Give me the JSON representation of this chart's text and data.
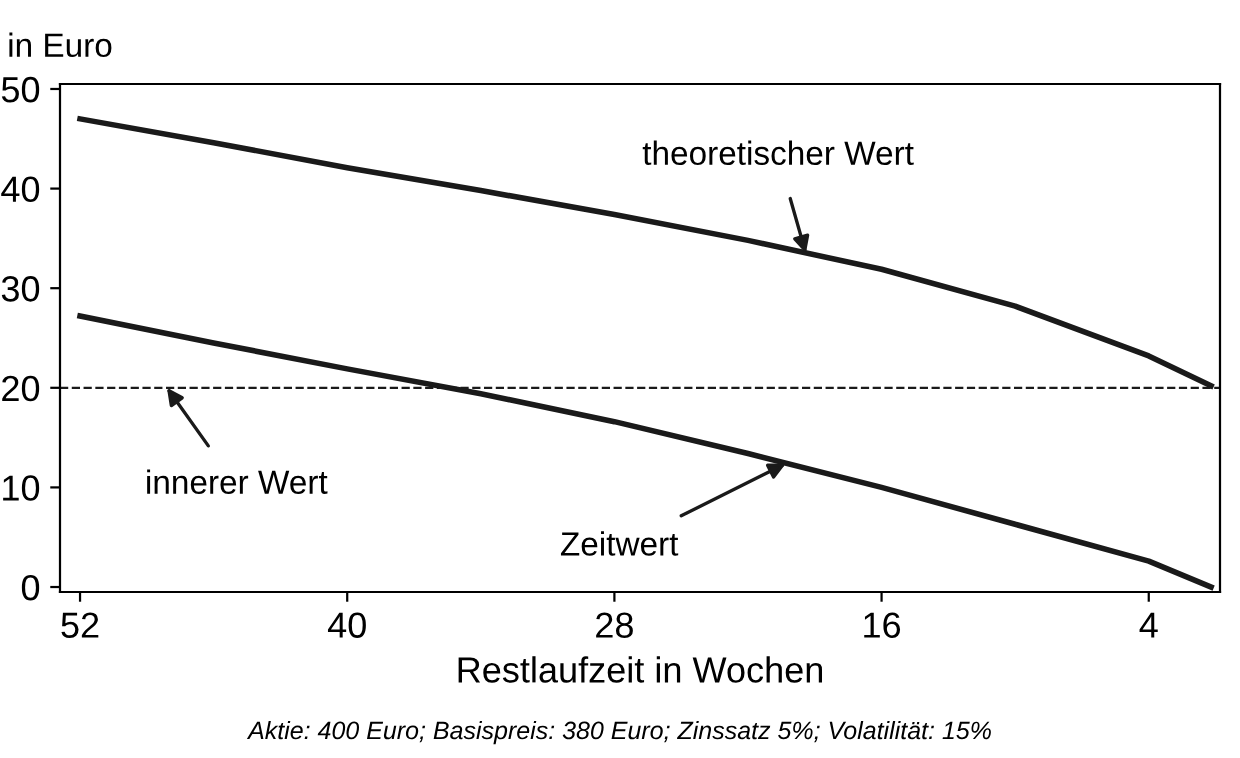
{
  "chart_data": {
    "type": "line",
    "ylabel": "in Euro",
    "xlabel": "Restlaufzeit in Wochen",
    "series": [
      {
        "color": "#1a1a1a",
        "x": [
          52,
          46,
          40,
          34,
          28,
          22,
          16,
          10,
          4,
          1.2
        ],
        "values": [
          47,
          44.6,
          42.1,
          39.8,
          37.4,
          34.8,
          31.9,
          28.2,
          23.2,
          20.2
        ]
      },
      {
        "color": "#1a1a1a",
        "x": [
          52,
          46,
          40,
          34,
          28,
          22,
          16,
          10,
          4,
          1.2
        ],
        "values": [
          27.2,
          24.5,
          21.9,
          19.4,
          16.6,
          13.4,
          10,
          6.3,
          2.6,
          0
        ]
      }
    ],
    "xlim": [
      52.9,
      0.8
    ],
    "ylim": [
      -0.5,
      50.5
    ],
    "xticks": [
      52,
      40,
      28,
      16,
      4
    ],
    "yticks": [
      0,
      10,
      20,
      30,
      40,
      50
    ],
    "ref_lines": [
      {
        "axis": "y",
        "value": 20,
        "line_style": "dashed",
        "color": "#1a1a1a"
      }
    ],
    "annotations": [
      {
        "text": "theoretischer Wert",
        "x": 19.4,
        "y": 33.5
      },
      {
        "text": "innerer Wert",
        "x": 48.1,
        "y": 20
      },
      {
        "text": "Zeitwert",
        "x": 20.3,
        "y": 12.4
      },
      "Aktie: 400 Euro; Basispreis: 380 Euro; Zinssatz 5%; Volatilität: 15%"
    ],
    "grid": false,
    "line_style": "solid"
  }
}
